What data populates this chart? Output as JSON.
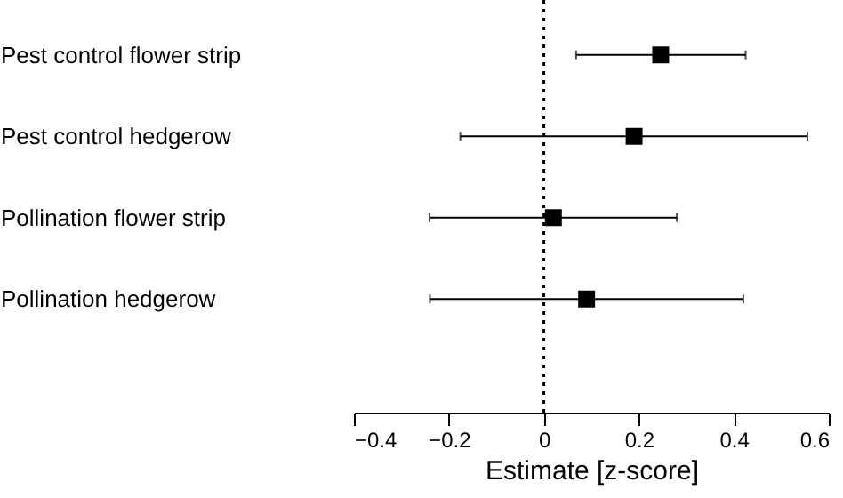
{
  "chart_data": {
    "type": "scatter",
    "orientation": "horizontal",
    "categories": [
      "Pest control flower strip",
      "Pest control hedgerow",
      "Pollination flower strip",
      "Pollination hedgerow"
    ],
    "values": [
      0.246,
      0.19,
      0.02,
      0.09
    ],
    "errors": [
      [
        0.068,
        0.425
      ],
      [
        -0.176,
        0.555
      ],
      [
        -0.241,
        0.28
      ],
      [
        -0.24,
        0.42
      ]
    ],
    "color": "#000000",
    "marker": "square",
    "xlabel": "Estimate [z-score]",
    "xlim": [
      -0.4,
      0.6
    ],
    "xticks": [
      -0.4,
      -0.2,
      0,
      0.2,
      0.4,
      0.6
    ],
    "ref_lines": [
      {
        "axis": "x",
        "value": 0,
        "line_style": "dotted",
        "color": "#000000"
      }
    ],
    "grid": false
  }
}
